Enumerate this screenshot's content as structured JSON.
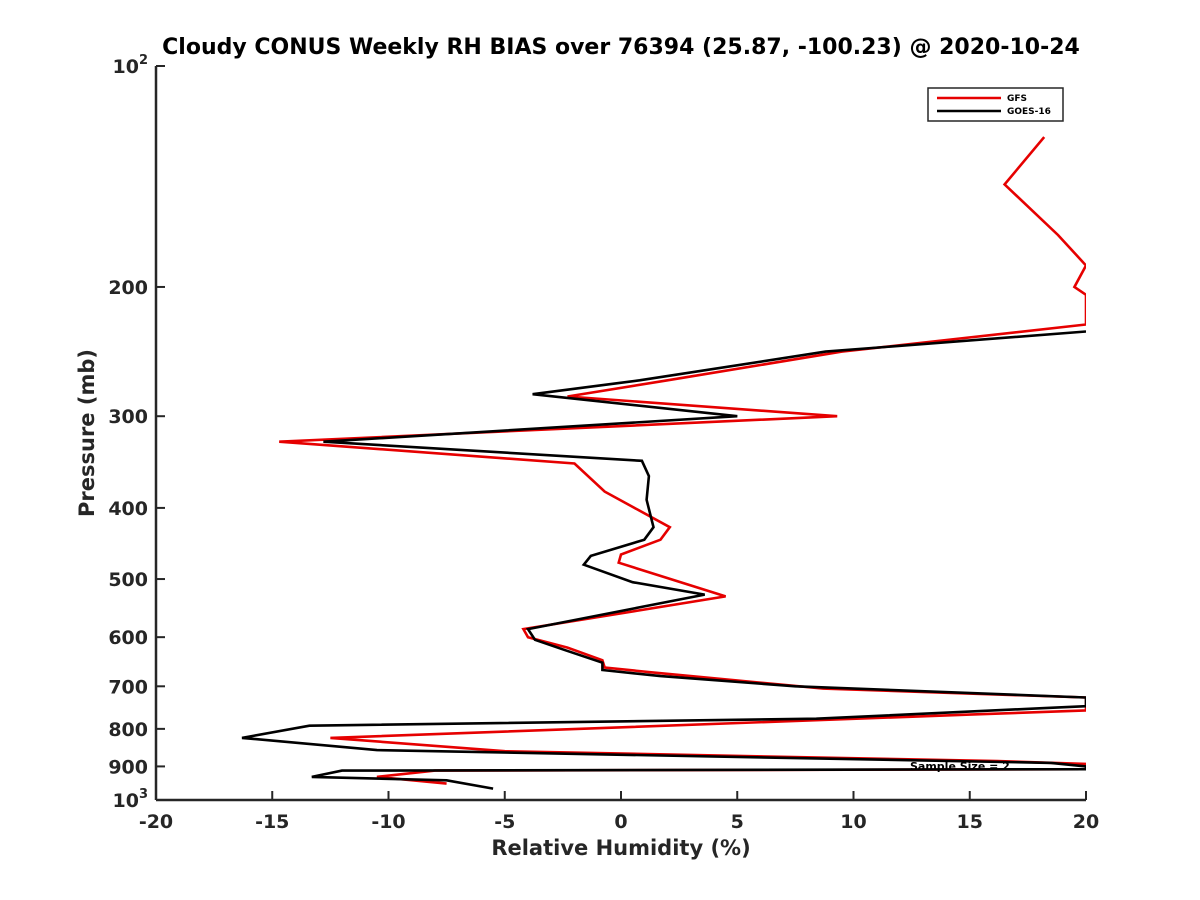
{
  "chart_data": {
    "type": "line",
    "title": "Cloudy CONUS Weekly RH BIAS over 76394 (25.87, -100.23) @ 2020-10-24",
    "xlabel": "Relative Humidity (%)",
    "ylabel": "Pressure (mb)",
    "xlim": [
      -20,
      20
    ],
    "ylim": [
      100,
      1000
    ],
    "y_scale": "log",
    "y_reversed": true,
    "grid": false,
    "legend_position": "top-right",
    "x_ticks": [
      "-20",
      "-15",
      "-10",
      "-5",
      "0",
      "5",
      "10",
      "15",
      "20"
    ],
    "y_ticks": [
      {
        "value": 100,
        "base": "10",
        "exp": "2"
      },
      {
        "value": 200,
        "label": "200"
      },
      {
        "value": 300,
        "label": "300"
      },
      {
        "value": 400,
        "label": "400"
      },
      {
        "value": 500,
        "label": "500"
      },
      {
        "value": 600,
        "label": "600"
      },
      {
        "value": 700,
        "label": "700"
      },
      {
        "value": 800,
        "label": "800"
      },
      {
        "value": 900,
        "label": "900"
      },
      {
        "value": 1000,
        "base": "10",
        "exp": "3"
      }
    ],
    "series": [
      {
        "name": "GFS",
        "color": "#e60000",
        "points": [
          [
            18.2,
            125
          ],
          [
            16.5,
            145
          ],
          [
            18.8,
            170
          ],
          [
            20,
            187
          ],
          [
            19.5,
            200
          ],
          [
            20,
            205
          ],
          [
            20,
            225
          ],
          [
            9.5,
            245
          ],
          [
            2,
            268
          ],
          [
            -2.3,
            282
          ],
          [
            9.3,
            300
          ],
          [
            -14.7,
            325
          ],
          [
            -2,
            348
          ],
          [
            -0.7,
            380
          ],
          [
            2.1,
            425
          ],
          [
            1.7,
            442
          ],
          [
            0,
            463
          ],
          [
            -0.1,
            475
          ],
          [
            4.5,
            528
          ],
          [
            -4.2,
            585
          ],
          [
            -4,
            600
          ],
          [
            -2.3,
            620
          ],
          [
            -0.8,
            645
          ],
          [
            -0.7,
            660
          ],
          [
            1.3,
            670
          ],
          [
            8.7,
            705
          ],
          [
            20,
            725
          ],
          [
            20,
            755
          ],
          [
            15,
            765
          ],
          [
            -12.5,
            823
          ],
          [
            -5,
            858
          ],
          [
            16.2,
            885
          ],
          [
            20,
            893
          ],
          [
            20,
            908
          ],
          [
            -8,
            912
          ],
          [
            -10.5,
            930
          ],
          [
            -7.5,
            950
          ]
        ]
      },
      {
        "name": "GOES-16",
        "color": "#000000",
        "points": [
          [
            20,
            230
          ],
          [
            8.8,
            245
          ],
          [
            0.8,
            268
          ],
          [
            -3.8,
            280
          ],
          [
            5,
            300
          ],
          [
            -12.8,
            325
          ],
          [
            0.9,
            345
          ],
          [
            1.2,
            362
          ],
          [
            1.1,
            390
          ],
          [
            1.4,
            425
          ],
          [
            1,
            442
          ],
          [
            -1.3,
            465
          ],
          [
            -1.6,
            478
          ],
          [
            0.5,
            505
          ],
          [
            3.6,
            525
          ],
          [
            -4,
            585
          ],
          [
            -3.7,
            605
          ],
          [
            -2.4,
            625
          ],
          [
            -0.8,
            650
          ],
          [
            -0.8,
            665
          ],
          [
            1.7,
            678
          ],
          [
            7.5,
            700
          ],
          [
            20,
            725
          ],
          [
            20,
            745
          ],
          [
            18,
            750
          ],
          [
            8.4,
            775
          ],
          [
            -13.4,
            792
          ],
          [
            -16.3,
            823
          ],
          [
            -10.5,
            855
          ],
          [
            18.5,
            890
          ],
          [
            20,
            900
          ],
          [
            20,
            908
          ],
          [
            -12,
            912
          ],
          [
            -13.3,
            930
          ],
          [
            -7.5,
            940
          ],
          [
            -5.5,
            965
          ]
        ]
      }
    ],
    "annotations": [
      "Sample Size = 2"
    ]
  }
}
